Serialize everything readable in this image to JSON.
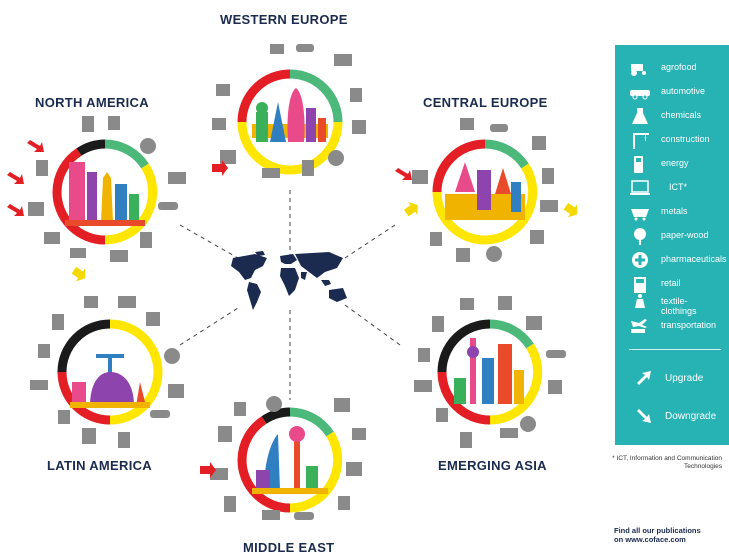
{
  "regions": {
    "western_europe": {
      "title": "WESTERN EUROPE"
    },
    "north_america": {
      "title": "NORTH AMERICA"
    },
    "central_europe": {
      "title": "CENTRAL EUROPE"
    },
    "latin_america": {
      "title": "LATIN AMERICA"
    },
    "emerging_asia": {
      "title": "EMERGING ASIA"
    },
    "middle_east": {
      "title": "MIDDLE EAST"
    }
  },
  "legend": {
    "items": [
      {
        "label": "agrofood",
        "icon": "tractor-icon"
      },
      {
        "label": "automotive",
        "icon": "car-icon"
      },
      {
        "label": "chemicals",
        "icon": "flask-icon"
      },
      {
        "label": "construction",
        "icon": "crane-icon"
      },
      {
        "label": "energy",
        "icon": "fuel-pump-icon"
      },
      {
        "label": "ICT*",
        "icon": "laptop-icon"
      },
      {
        "label": "metals",
        "icon": "ore-cart-icon"
      },
      {
        "label": "paper-wood",
        "icon": "tree-icon"
      },
      {
        "label": "pharmaceuticals",
        "icon": "medical-cross-icon"
      },
      {
        "label": "retail",
        "icon": "cash-register-icon"
      },
      {
        "label": "textile-clothings",
        "icon": "dress-form-icon"
      },
      {
        "label": "transportation",
        "icon": "plane-truck-icon"
      }
    ],
    "upgrade_label": "Upgrade",
    "downgrade_label": "Downgrade"
  },
  "footnote": "* ICT, Information and Communication Technologies",
  "publications": {
    "line1": "Find all our publications",
    "line2": "on  www.coface.com"
  },
  "colors": {
    "legend_bg": "#27b3b4",
    "arc_red": "#e31e24",
    "arc_yellow": "#ffe600",
    "arc_green": "#4cb87a",
    "arc_black": "#1a1a1a",
    "map": "#1b2b4f",
    "icon_gray": "#7a7a7a",
    "upgrade_arrow": "#f5d800",
    "downgrade_arrow": "#e31e24"
  }
}
